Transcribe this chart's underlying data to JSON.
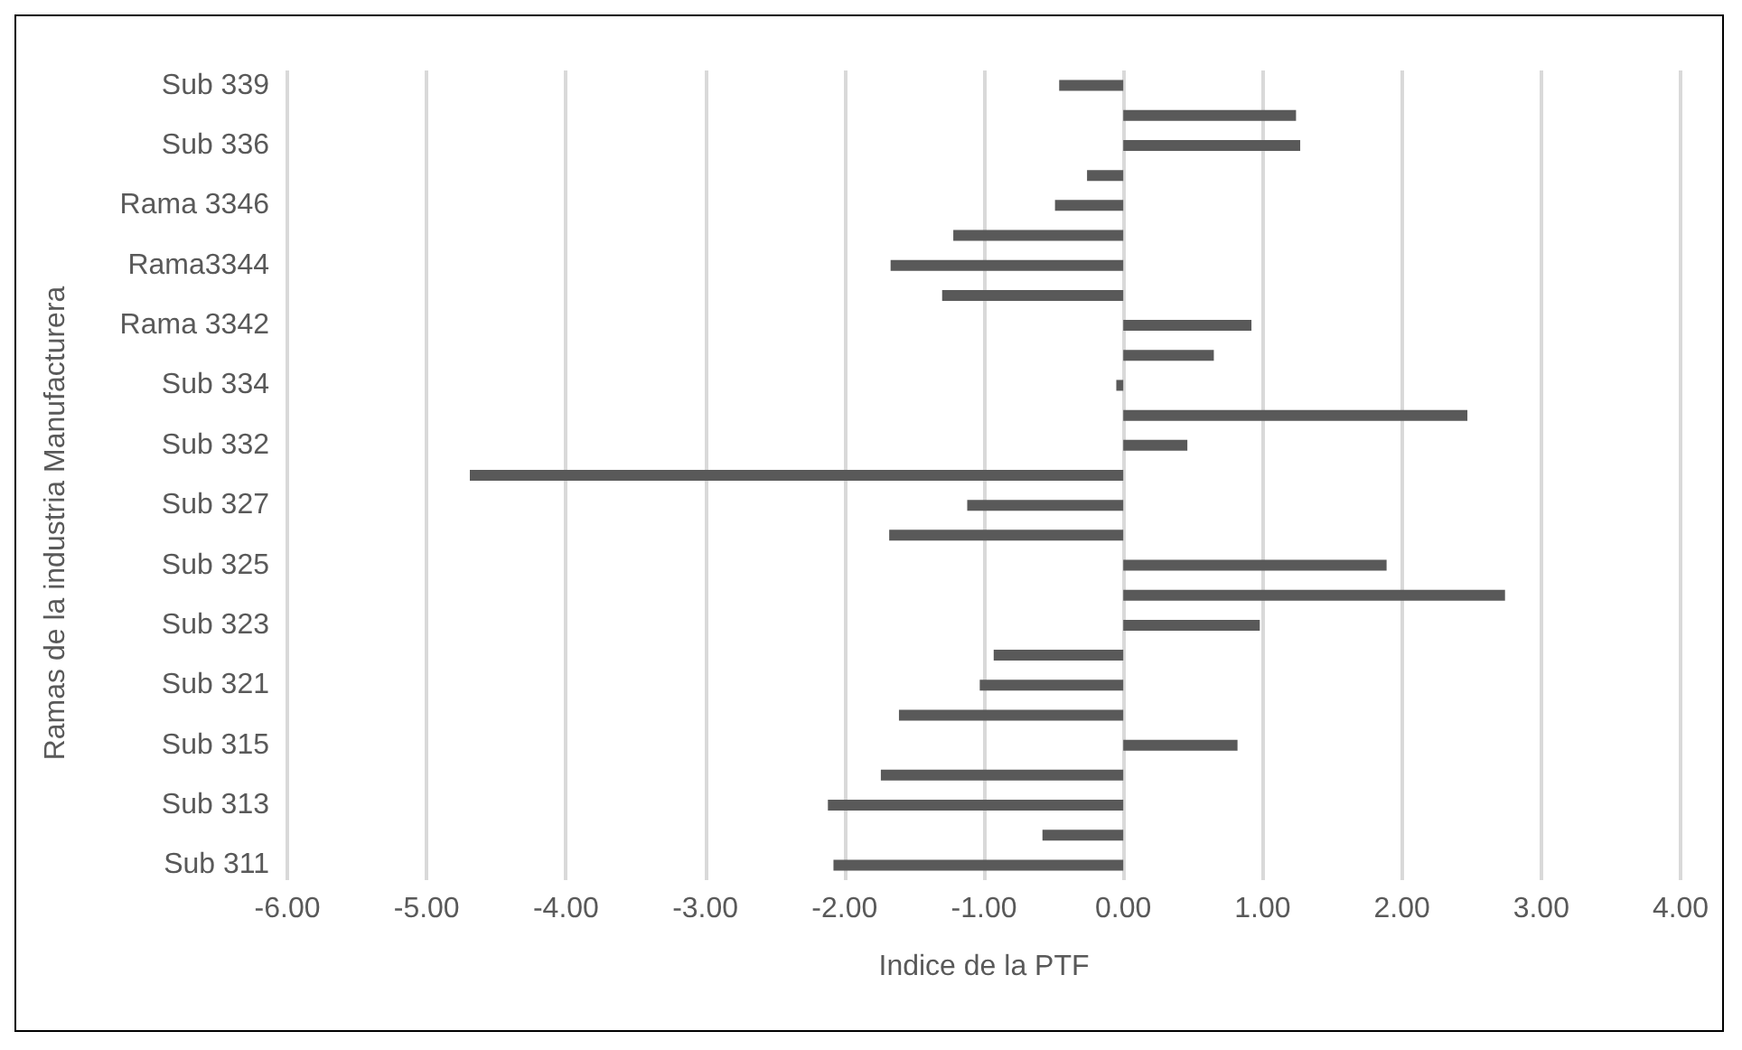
{
  "chart_data": {
    "type": "bar",
    "orientation": "horizontal",
    "xlabel": "Indice de la PTF",
    "ylabel": "Ramas de la industria Manufacturera",
    "categories": [
      "Sub 339",
      null,
      "Sub 336",
      null,
      "Rama 3346",
      null,
      "Rama3344",
      null,
      "Rama 3342",
      null,
      "Sub 334",
      null,
      "Sub 332",
      null,
      "Sub 327",
      null,
      "Sub 325",
      null,
      "Sub 323",
      null,
      "Sub 321",
      null,
      "Sub 315",
      null,
      "Sub 313",
      null,
      "Sub 311"
    ],
    "values": [
      -0.46,
      1.24,
      1.27,
      -0.26,
      -0.49,
      -1.22,
      -1.67,
      -1.3,
      0.92,
      0.65,
      -0.05,
      2.47,
      0.46,
      -4.69,
      -1.12,
      -1.68,
      1.89,
      2.74,
      0.98,
      -0.93,
      -1.03,
      -1.61,
      0.82,
      -1.74,
      -2.12,
      -0.58,
      -2.08
    ],
    "color": "#595959",
    "xlim": [
      -6,
      4
    ],
    "xticks": [
      {
        "value": -6,
        "label": "-6.00"
      },
      {
        "value": -5,
        "label": "-5.00"
      },
      {
        "value": -4,
        "label": "-4.00"
      },
      {
        "value": -3,
        "label": "-3.00"
      },
      {
        "value": -2,
        "label": "-2.00"
      },
      {
        "value": -1,
        "label": "-1.00"
      },
      {
        "value": 0,
        "label": "0.00"
      },
      {
        "value": 1,
        "label": "1.00"
      },
      {
        "value": 2,
        "label": "2.00"
      },
      {
        "value": 3,
        "label": "3.00"
      },
      {
        "value": 4,
        "label": "4.00"
      }
    ],
    "grid": "x"
  }
}
